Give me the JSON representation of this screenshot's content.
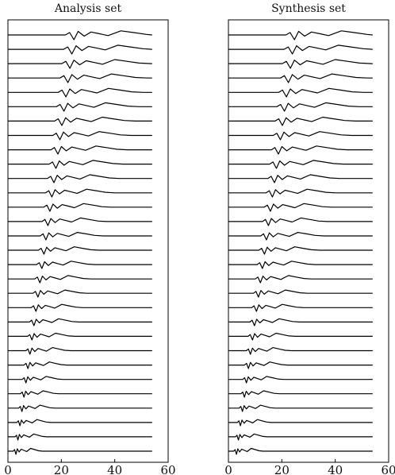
{
  "chart_data": [
    {
      "type": "line",
      "title": "Analysis set",
      "xlabel": "",
      "ylabel": "",
      "xlim": [
        0,
        60
      ],
      "xticks": [
        "0",
        "20",
        "40",
        "60"
      ],
      "trace_count": 30,
      "pulse_time_first_trace": 21.5,
      "pulse_time_last_trace": 2.0,
      "trace_end_x": 54,
      "grid": false
    },
    {
      "type": "line",
      "title": "Synthesis set",
      "xlabel": "",
      "ylabel": "",
      "xlim": [
        0,
        60
      ],
      "xticks": [
        "0",
        "20",
        "40",
        "60"
      ],
      "trace_count": 30,
      "pulse_time_first_trace": 21.5,
      "pulse_time_last_trace": 2.0,
      "trace_end_x": 54,
      "grid": false
    }
  ]
}
